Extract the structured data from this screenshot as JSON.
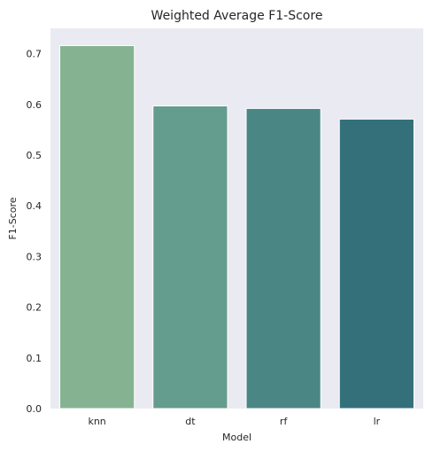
{
  "chart_data": {
    "type": "bar",
    "title": "Weighted Average F1-Score",
    "xlabel": "Model",
    "ylabel": "F1-Score",
    "categories": [
      "knn",
      "dt",
      "rf",
      "lr"
    ],
    "values": [
      0.716,
      0.597,
      0.592,
      0.571
    ],
    "ylim": [
      0,
      0.75
    ],
    "yticks": [
      "0.0",
      "0.1",
      "0.2",
      "0.3",
      "0.4",
      "0.5",
      "0.6",
      "0.7"
    ],
    "grid": false,
    "colors": [
      "#85b392",
      "#649c8d",
      "#4a8684",
      "#347079"
    ],
    "background": "#eaeaf2"
  }
}
